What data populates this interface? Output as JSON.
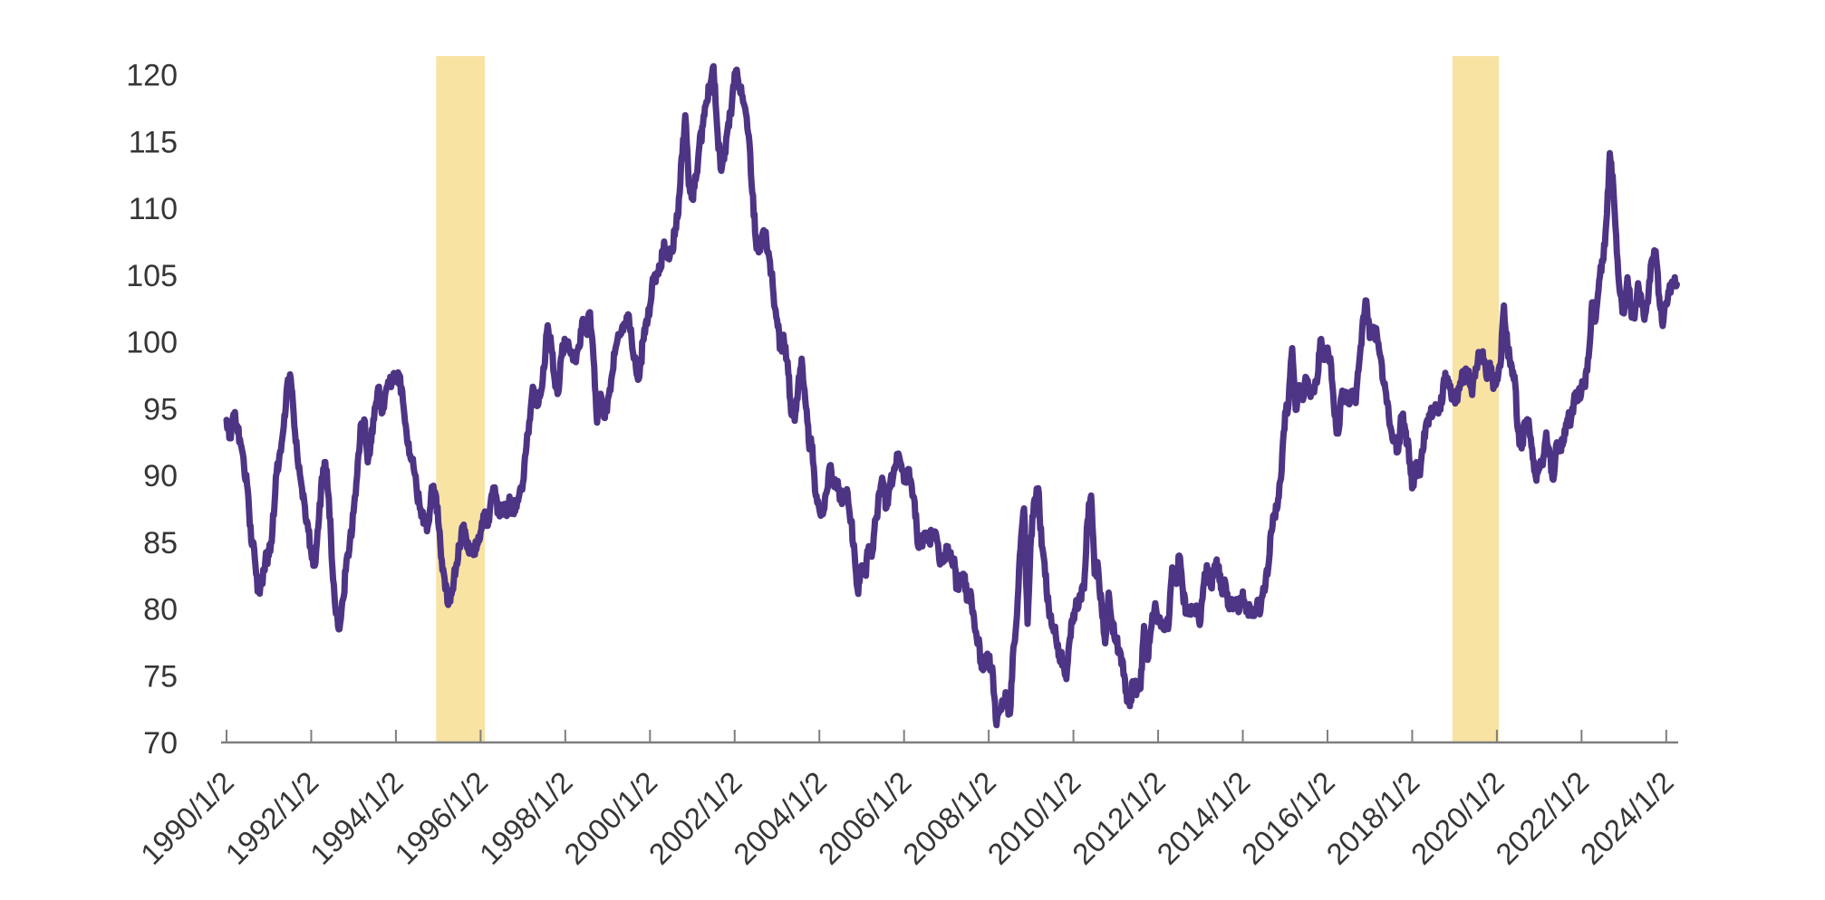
{
  "chart_data": {
    "type": "line",
    "title": "",
    "x_axis": {
      "tick_years": [
        1990,
        1992,
        1994,
        1996,
        1998,
        2000,
        2002,
        2004,
        2006,
        2008,
        2010,
        2012,
        2014,
        2016,
        2018,
        2020,
        2022,
        2024
      ],
      "tick_labels": [
        "1990/1/2",
        "1992/1/2",
        "1994/1/2",
        "1996/1/2",
        "1998/1/2",
        "2000/1/2",
        "2002/1/2",
        "2004/1/2",
        "2006/1/2",
        "2008/1/2",
        "2010/1/2",
        "2012/1/2",
        "2014/1/2",
        "2016/1/2",
        "2018/1/2",
        "2020/1/2",
        "2022/1/2",
        "2024/1/2"
      ]
    },
    "y_axis": {
      "min": 70,
      "max": 120,
      "ticks": [
        70,
        75,
        80,
        85,
        90,
        95,
        100,
        105,
        110,
        115,
        120
      ],
      "tick_labels": [
        "70",
        "75",
        "80",
        "85",
        "90",
        "95",
        "100",
        "105",
        "110",
        "115",
        "120"
      ]
    },
    "grid": false,
    "legend": "none",
    "highlight_bands": [
      {
        "start_year": 1994.95,
        "end_year": 1996.1
      },
      {
        "start_year": 2018.95,
        "end_year": 2020.05
      }
    ],
    "series": [
      {
        "name": "dollar-index-line",
        "start_year": 1990,
        "interval_months": 1,
        "values": [
          94.2,
          93.0,
          94.6,
          93.8,
          92.2,
          90.5,
          88.8,
          85.2,
          83.9,
          81.3,
          81.9,
          83.6,
          83.9,
          85.8,
          89.8,
          91.6,
          93.2,
          96.2,
          97.6,
          94.6,
          91.6,
          89.6,
          88.2,
          86.2,
          84.2,
          83.3,
          86.2,
          89.7,
          90.9,
          88.2,
          83.2,
          79.6,
          78.4,
          80.6,
          83.6,
          85.1,
          87.1,
          90.1,
          93.6,
          94.1,
          91.1,
          92.6,
          95.1,
          96.6,
          94.6,
          96.1,
          96.9,
          97.3,
          96.9,
          97.4,
          95.6,
          93.1,
          91.6,
          90.6,
          88.6,
          87.6,
          86.6,
          86.1,
          88.6,
          88.9,
          86.6,
          83.6,
          81.6,
          80.4,
          81.6,
          83.1,
          84.6,
          86.1,
          85.1,
          84.6,
          84.1,
          84.9,
          85.8,
          86.9,
          86.2,
          88.3,
          89.0,
          87.3,
          87.8,
          87.2,
          88.0,
          87.4,
          87.8,
          88.6,
          89.6,
          92.1,
          94.1,
          96.6,
          95.1,
          96.1,
          98.1,
          101.3,
          99.6,
          97.2,
          96.1,
          99.1,
          100.2,
          99.6,
          99.1,
          98.6,
          99.6,
          101.6,
          100.6,
          102.3,
          98.6,
          93.8,
          96.1,
          94.3,
          95.6,
          97.1,
          99.1,
          100.6,
          100.9,
          101.3,
          102.1,
          99.6,
          98.1,
          97.3,
          100.1,
          101.6,
          102.6,
          104.6,
          105.1,
          105.6,
          107.6,
          106.1,
          106.6,
          108.1,
          109.6,
          113.9,
          116.9,
          111.6,
          110.9,
          112.1,
          114.6,
          116.1,
          118.1,
          119.1,
          120.6,
          116.1,
          113.1,
          113.6,
          116.1,
          117.1,
          120.1,
          119.6,
          118.6,
          117.6,
          115.6,
          111.1,
          107.6,
          107.1,
          108.1,
          107.6,
          106.1,
          103.6,
          101.6,
          99.6,
          100.1,
          98.6,
          94.6,
          94.1,
          96.6,
          98.6,
          95.6,
          92.6,
          92.1,
          88.6,
          87.6,
          87.1,
          88.6,
          90.6,
          89.6,
          89.1,
          88.6,
          88.1,
          88.6,
          86.6,
          84.1,
          81.2,
          83.4,
          82.6,
          84.6,
          84.1,
          86.6,
          88.6,
          89.6,
          87.6,
          89.1,
          90.1,
          91.5,
          90.8,
          89.6,
          90.1,
          89.6,
          88.1,
          84.6,
          85.1,
          85.6,
          85.1,
          85.6,
          85.6,
          83.6,
          83.6,
          84.6,
          84.1,
          83.6,
          81.6,
          82.1,
          82.6,
          80.6,
          80.9,
          78.6,
          77.6,
          75.6,
          76.1,
          76.1,
          75.6,
          71.6,
          72.3,
          72.9,
          73.3,
          72.1,
          77.1,
          79.6,
          84.6,
          87.6,
          79.0,
          85.5,
          88.1,
          89.1,
          84.6,
          82.6,
          80.1,
          78.6,
          78.1,
          76.6,
          76.1,
          74.8,
          77.9,
          79.5,
          80.4,
          81.1,
          81.6,
          86.6,
          88.4,
          82.6,
          83.1,
          80.1,
          77.3,
          81.1,
          79.0,
          77.7,
          77.0,
          75.9,
          73.8,
          72.8,
          74.6,
          73.9,
          74.1,
          78.6,
          76.2,
          78.4,
          80.2,
          79.3,
          78.7,
          79.0,
          78.8,
          83.0,
          81.8,
          83.9,
          81.3,
          79.9,
          80.0,
          80.2,
          79.8,
          79.2,
          81.9,
          83.0,
          81.7,
          83.4,
          83.1,
          81.5,
          82.1,
          80.2,
          80.2,
          80.7,
          80.0,
          81.3,
          79.7,
          80.0,
          79.8,
          80.4,
          79.8,
          81.5,
          82.7,
          85.9,
          87.0,
          88.3,
          90.3,
          94.8,
          95.3,
          99.6,
          94.9,
          96.9,
          95.5,
          97.3,
          96.1,
          96.3,
          96.9,
          100.2,
          98.7,
          99.6,
          98.2,
          94.6,
          93.1,
          95.9,
          96.1,
          95.5,
          96.0,
          95.5,
          98.3,
          101.5,
          103.2,
          100.2,
          101.1,
          100.4,
          99.0,
          96.9,
          95.6,
          93.4,
          92.7,
          91.9,
          94.6,
          93.3,
          92.1,
          89.1,
          90.6,
          90.0,
          91.8,
          94.0,
          94.5,
          94.6,
          95.1,
          95.0,
          97.1,
          97.3,
          96.2,
          95.6,
          96.2,
          97.3,
          97.5,
          97.7,
          96.1,
          98.1,
          98.9,
          99.4,
          97.3,
          98.3,
          96.4,
          97.4,
          98.1,
          102.8,
          99.5,
          98.3,
          97.4,
          93.3,
          92.1,
          93.9,
          94.0,
          91.9,
          89.9,
          90.6,
          90.9,
          93.2,
          91.3,
          89.8,
          92.4,
          92.2,
          92.6,
          94.2,
          94.1,
          96.0,
          95.7,
          96.5,
          96.7,
          98.8,
          103.0,
          101.8,
          104.7,
          105.9,
          108.8,
          114.2,
          111.5,
          106.7,
          103.5,
          102.1,
          104.9,
          102.5,
          101.7,
          104.3,
          102.9,
          101.9,
          103.6,
          106.2,
          106.7,
          103.5,
          101.3,
          102.9,
          104.2,
          104.4,
          104.3
        ]
      }
    ],
    "styles": {
      "line_color": "#4d3484",
      "band_color": "#f8e3a3",
      "axis_color": "#7f7f7f",
      "label_color": "#363636",
      "background": "#ffffff"
    }
  }
}
